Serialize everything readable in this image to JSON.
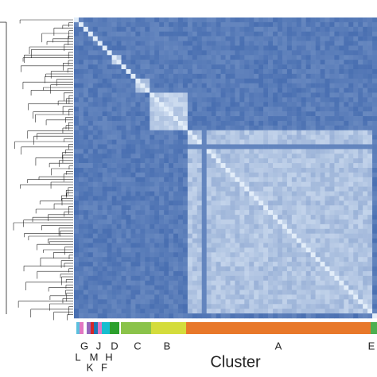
{
  "cluster_labels": {
    "row1": [
      "G",
      "J",
      "D",
      "C",
      "B",
      "A",
      "E"
    ],
    "row2": [
      "L",
      "M",
      "H"
    ],
    "row3": [
      "K",
      "F"
    ]
  },
  "x_label": "Cluster"
}
